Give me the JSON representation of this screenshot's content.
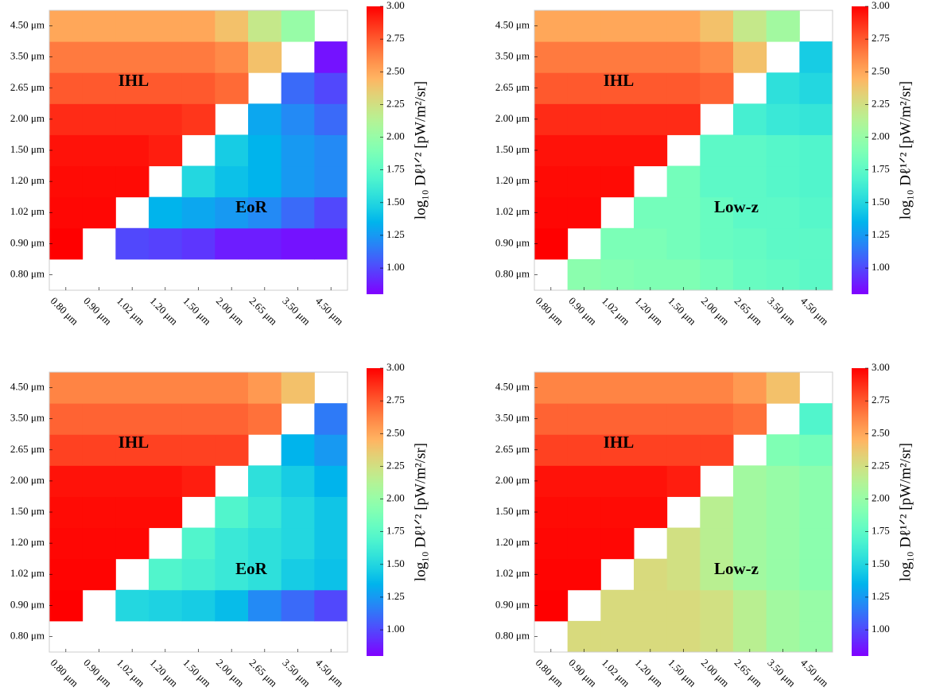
{
  "chart_data": [
    {
      "type": "heatmap",
      "x_categories": [
        "0.80 μm",
        "0.90 μm",
        "1.02 μm",
        "1.20 μm",
        "1.50 μm",
        "2.00 μm",
        "2.65 μm",
        "3.50 μm",
        "4.50 μm"
      ],
      "y_categories": [
        "0.80 μm",
        "0.90 μm",
        "1.02 μm",
        "1.20 μm",
        "1.50 μm",
        "2.00 μm",
        "2.65 μm",
        "3.50 μm",
        "4.50 μm"
      ],
      "z": [
        [
          null,
          null,
          null,
          null,
          null,
          null,
          null,
          null,
          null
        ],
        [
          3.0,
          null,
          1.0,
          0.98,
          0.95,
          0.88,
          0.88,
          0.85,
          0.85
        ],
        [
          2.98,
          2.98,
          null,
          1.35,
          1.3,
          1.25,
          1.2,
          1.1,
          1.0
        ],
        [
          2.97,
          2.97,
          2.97,
          null,
          1.5,
          1.4,
          1.35,
          1.25,
          1.2
        ],
        [
          2.95,
          2.95,
          2.95,
          2.92,
          null,
          1.45,
          1.35,
          1.25,
          1.2
        ],
        [
          2.88,
          2.88,
          2.88,
          2.88,
          2.85,
          null,
          1.3,
          1.2,
          1.1
        ],
        [
          2.75,
          2.75,
          2.75,
          2.75,
          2.75,
          2.7,
          null,
          1.1,
          1.0
        ],
        [
          2.65,
          2.65,
          2.65,
          2.65,
          2.65,
          2.6,
          2.4,
          null,
          0.85
        ],
        [
          2.5,
          2.5,
          2.5,
          2.5,
          2.5,
          2.4,
          2.2,
          2.0,
          null
        ]
      ],
      "annotations": [
        "IHL",
        "EoR"
      ],
      "colorbar": {
        "cmap": "rainbow",
        "clim": [
          0.8,
          3.0
        ],
        "label": "log₁₀ Dℓ¹ᐟ² [pW/m²/sr]",
        "ticks": [
          {
            "value": 1.0,
            "label": "1.00"
          },
          1.25,
          {
            "value": 1.5,
            "label": "1.50"
          },
          1.75,
          {
            "value": 2.0,
            "label": "2.00"
          },
          2.25,
          {
            "value": 2.5,
            "label": "2.50"
          },
          2.75,
          {
            "value": 3.0,
            "label": "3.00"
          }
        ]
      }
    },
    {
      "type": "heatmap",
      "x_categories": [
        "0.80 μm",
        "0.90 μm",
        "1.02 μm",
        "1.20 μm",
        "1.50 μm",
        "2.00 μm",
        "2.65 μm",
        "3.50 μm",
        "4.50 μm"
      ],
      "y_categories": [
        "0.80 μm",
        "0.90 μm",
        "1.02 μm",
        "1.20 μm",
        "1.50 μm",
        "2.00 μm",
        "2.65 μm",
        "3.50 μm",
        "4.50 μm"
      ],
      "z": [
        [
          null,
          1.95,
          1.92,
          1.9,
          1.9,
          1.85,
          1.8,
          1.78,
          1.75
        ],
        [
          3.0,
          null,
          1.88,
          1.88,
          1.85,
          1.8,
          1.78,
          1.75,
          1.75
        ],
        [
          2.98,
          2.98,
          null,
          1.85,
          1.85,
          1.8,
          1.75,
          1.75,
          1.72
        ],
        [
          2.97,
          2.97,
          2.97,
          null,
          1.85,
          1.75,
          1.75,
          1.72,
          1.7
        ],
        [
          2.95,
          2.95,
          2.95,
          2.95,
          null,
          1.75,
          1.75,
          1.72,
          1.7
        ],
        [
          2.88,
          2.88,
          2.88,
          2.88,
          2.88,
          null,
          1.65,
          1.6,
          1.58
        ],
        [
          2.75,
          2.75,
          2.75,
          2.75,
          2.75,
          2.72,
          null,
          1.55,
          1.5
        ],
        [
          2.65,
          2.65,
          2.65,
          2.65,
          2.65,
          2.6,
          2.4,
          null,
          1.45
        ],
        [
          2.5,
          2.5,
          2.5,
          2.5,
          2.5,
          2.4,
          2.2,
          2.05,
          null
        ]
      ],
      "annotations": [
        "IHL",
        "Low-z"
      ],
      "colorbar": {
        "cmap": "rainbow",
        "clim": [
          0.8,
          3.0
        ],
        "label": "log₁₀ Dℓ¹ᐟ² [pW/m²/sr]",
        "ticks": [
          {
            "value": 1.0,
            "label": "1.00"
          },
          1.25,
          {
            "value": 1.5,
            "label": "1.50"
          },
          1.75,
          {
            "value": 2.0,
            "label": "2.00"
          },
          2.25,
          {
            "value": 2.5,
            "label": "2.50"
          },
          2.75,
          {
            "value": 3.0,
            "label": "3.00"
          }
        ]
      }
    },
    {
      "type": "heatmap",
      "x_categories": [
        "0.80 μm",
        "0.90 μm",
        "1.02 μm",
        "1.20 μm",
        "1.50 μm",
        "2.00 μm",
        "2.65 μm",
        "3.50 μm",
        "4.50 μm"
      ],
      "y_categories": [
        "0.80 μm",
        "0.90 μm",
        "1.02 μm",
        "1.20 μm",
        "1.50 μm",
        "2.00 μm",
        "2.65 μm",
        "3.50 μm",
        "4.50 μm"
      ],
      "z": [
        [
          null,
          null,
          null,
          null,
          null,
          null,
          null,
          null,
          null
        ],
        [
          3.0,
          null,
          1.5,
          1.48,
          1.45,
          1.38,
          1.2,
          1.1,
          1.0
        ],
        [
          2.99,
          2.99,
          null,
          1.7,
          1.65,
          1.6,
          1.55,
          1.45,
          1.4
        ],
        [
          2.98,
          2.98,
          2.98,
          null,
          1.7,
          1.6,
          1.55,
          1.5,
          1.42
        ],
        [
          2.97,
          2.97,
          2.97,
          2.97,
          null,
          1.7,
          1.6,
          1.5,
          1.42
        ],
        [
          2.95,
          2.95,
          2.95,
          2.95,
          2.92,
          null,
          1.55,
          1.45,
          1.35
        ],
        [
          2.82,
          2.82,
          2.82,
          2.82,
          2.82,
          2.82,
          null,
          1.35,
          1.25
        ],
        [
          2.72,
          2.72,
          2.72,
          2.72,
          2.72,
          2.72,
          2.68,
          null,
          1.15
        ],
        [
          2.62,
          2.62,
          2.62,
          2.62,
          2.62,
          2.62,
          2.55,
          2.4,
          null
        ]
      ],
      "annotations": [
        "IHL",
        "EoR"
      ],
      "colorbar": {
        "cmap": "rainbow",
        "clim": [
          0.8,
          3.0
        ],
        "label": "log₁₀ Dℓ¹ᐟ² [pW/m²/sr]",
        "ticks": [
          {
            "value": 1.0,
            "label": "1.00"
          },
          1.25,
          {
            "value": 1.5,
            "label": "1.50"
          },
          1.75,
          {
            "value": 2.0,
            "label": "2.00"
          },
          2.25,
          {
            "value": 2.5,
            "label": "2.50"
          },
          2.75,
          {
            "value": 3.0,
            "label": "3.00"
          }
        ]
      }
    },
    {
      "type": "heatmap",
      "x_categories": [
        "0.80 μm",
        "0.90 μm",
        "1.02 μm",
        "1.20 μm",
        "1.50 μm",
        "2.00 μm",
        "2.65 μm",
        "3.50 μm",
        "4.50 μm"
      ],
      "y_categories": [
        "0.80 μm",
        "0.90 μm",
        "1.02 μm",
        "1.20 μm",
        "1.50 μm",
        "2.00 μm",
        "2.65 μm",
        "3.50 μm",
        "4.50 μm"
      ],
      "z": [
        [
          null,
          2.28,
          2.28,
          2.28,
          2.28,
          2.25,
          2.15,
          2.05,
          2.0
        ],
        [
          3.0,
          null,
          2.28,
          2.28,
          2.28,
          2.25,
          2.15,
          2.05,
          2.0
        ],
        [
          2.99,
          2.99,
          null,
          2.28,
          2.25,
          2.15,
          2.05,
          2.0,
          1.95
        ],
        [
          2.98,
          2.98,
          2.98,
          null,
          2.25,
          2.15,
          2.05,
          2.0,
          1.95
        ],
        [
          2.97,
          2.97,
          2.97,
          2.97,
          null,
          2.15,
          2.05,
          2.0,
          1.95
        ],
        [
          2.95,
          2.95,
          2.95,
          2.95,
          2.92,
          null,
          2.05,
          2.0,
          1.95
        ],
        [
          2.82,
          2.82,
          2.82,
          2.82,
          2.82,
          2.82,
          null,
          1.9,
          1.85
        ],
        [
          2.72,
          2.72,
          2.72,
          2.72,
          2.72,
          2.72,
          2.68,
          null,
          1.7
        ],
        [
          2.62,
          2.62,
          2.62,
          2.62,
          2.62,
          2.62,
          2.55,
          2.4,
          null
        ]
      ],
      "annotations": [
        "IHL",
        "Low-z"
      ],
      "colorbar": {
        "cmap": "rainbow",
        "clim": [
          0.8,
          3.0
        ],
        "label": "log₁₀ Dℓ¹ᐟ² [pW/m²/sr]",
        "ticks": [
          {
            "value": 1.0,
            "label": "1.00"
          },
          1.25,
          {
            "value": 1.5,
            "label": "1.50"
          },
          1.75,
          {
            "value": 2.0,
            "label": "2.00"
          },
          2.25,
          {
            "value": 2.5,
            "label": "2.50"
          },
          2.75,
          {
            "value": 3.0,
            "label": "3.00"
          }
        ]
      }
    }
  ]
}
